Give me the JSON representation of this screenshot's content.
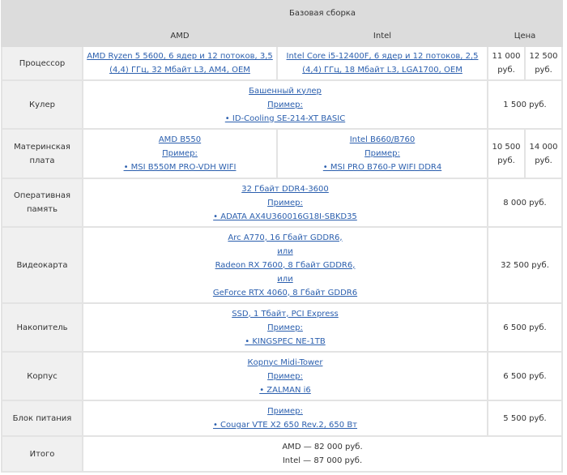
{
  "header": {
    "title": "Базовая сборка",
    "col_amd": "AMD",
    "col_intel": "Intel",
    "col_price": "Цена"
  },
  "rows": {
    "cpu": {
      "label": "Процессор",
      "amd": "AMD Ryzen 5 5600, 6 ядер и 12 потоков, 3,5 (4,4) ГГц, 32 Мбайт L3, AM4, OEM",
      "intel": "Intel Core i5-12400F, 6 ядер и 12 потоков, 2,5 (4,4) ГГц, 18 Мбайт L3, LGA1700, OEM",
      "price_amd": "11 000 руб.",
      "price_intel": "12 500 руб."
    },
    "cooler": {
      "label": "Кулер",
      "type": "Башенный кулер",
      "example": "Пример:",
      "item": "• ID-Cooling SE-214-XT BASIC",
      "price": "1 500 руб."
    },
    "mobo": {
      "label": "Материнская плата",
      "amd_type": "AMD B550",
      "amd_example": "Пример:",
      "amd_item": "• MSI B550M PRO-VDH WIFI",
      "intel_type": "Intel B660/B760",
      "intel_example": "Пример:",
      "intel_item": "• MSI PRO B760-P WIFI DDR4",
      "price_amd": "10 500 руб.",
      "price_intel": "14 000 руб."
    },
    "ram": {
      "label": "Оперативная память",
      "type": "32 Гбайт DDR4-3600",
      "example": "Пример:",
      "item": "• ADATA AX4U360016G18I-SBKD35",
      "price": "8 000 руб."
    },
    "gpu": {
      "label": "Видеокарта",
      "opt1": "Arc A770, 16 Гбайт GDDR6,",
      "or1": "или",
      "opt2": "Radeon RX 7600, 8 Гбайт GDDR6,",
      "or2": "или",
      "opt3": "GeForce RTX 4060, 8 Гбайт GDDR6",
      "price": "32 500 руб."
    },
    "storage": {
      "label": "Накопитель",
      "type": "SSD, 1 Тбайт, PCI Express",
      "example": "Пример:",
      "item": "• KINGSPEC NE-1TB",
      "price": "6 500 руб."
    },
    "case": {
      "label": "Корпус",
      "type": "Корпус Midi-Tower",
      "example": "Пример:",
      "item": "• ZALMAN i6",
      "price": "6 500 руб."
    },
    "psu": {
      "label": "Блок питания",
      "example": "Пример:",
      "item": "• Cougar VTE X2 650 Rev.2, 650 Вт",
      "price": "5 500 руб."
    },
    "total": {
      "label": "Итого",
      "amd": "AMD — 82 000 руб.",
      "intel": "Intel — 87 000 руб."
    }
  },
  "colors": {
    "link": "#2b5fae",
    "header_bg": "#dcdcdc",
    "label_bg": "#f0f0f0",
    "border": "#e3e3e3"
  }
}
